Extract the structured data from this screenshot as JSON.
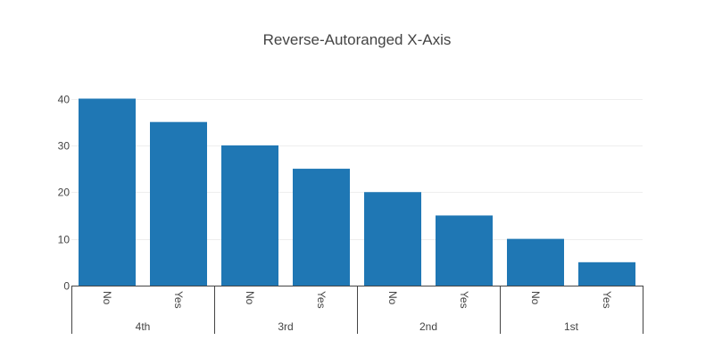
{
  "chart_data": {
    "type": "bar",
    "title": "Reverse-Autoranged X-Axis",
    "xlabel": "",
    "ylabel": "",
    "x_axis_reversed": true,
    "grid": true,
    "ylim": [
      0,
      40
    ],
    "yticks": [
      0,
      10,
      20,
      30,
      40
    ],
    "groups": [
      "4th",
      "3rd",
      "2nd",
      "1st"
    ],
    "categories": [
      {
        "group": "4th",
        "label": "No"
      },
      {
        "group": "4th",
        "label": "Yes"
      },
      {
        "group": "3rd",
        "label": "No"
      },
      {
        "group": "3rd",
        "label": "Yes"
      },
      {
        "group": "2nd",
        "label": "No"
      },
      {
        "group": "2nd",
        "label": "Yes"
      },
      {
        "group": "1st",
        "label": "No"
      },
      {
        "group": "1st",
        "label": "Yes"
      }
    ],
    "values": [
      40,
      35,
      30,
      25,
      20,
      15,
      10,
      5
    ],
    "color": "#1f77b4"
  }
}
